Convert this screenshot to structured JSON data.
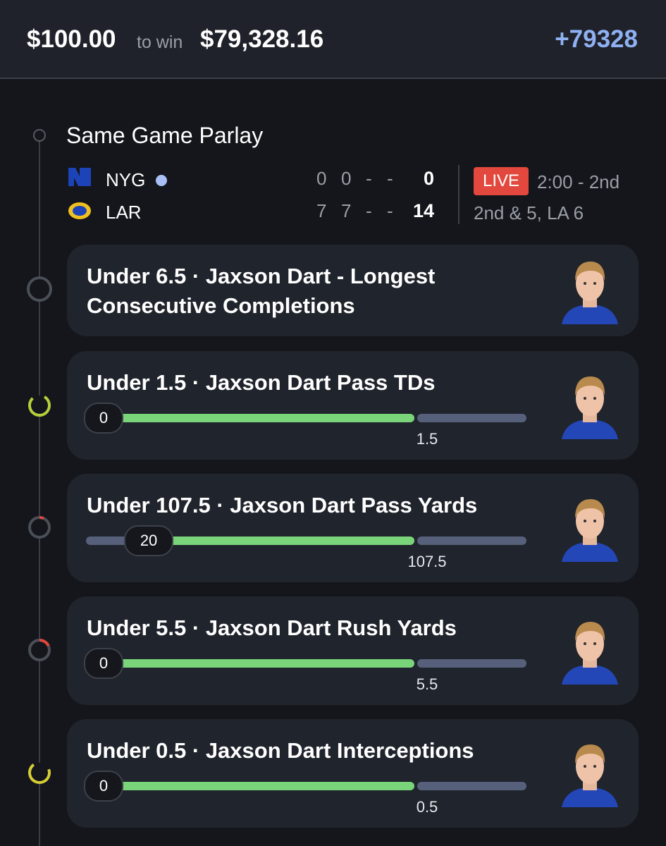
{
  "header": {
    "stake": "$100.00",
    "to_win_label": "to win",
    "payout": "$79,328.16",
    "odds": "+79328"
  },
  "game": {
    "title": "Same Game Parlay",
    "teams": [
      {
        "abbr": "NYG",
        "periods": [
          "0",
          "0",
          "-",
          "-"
        ],
        "total": "0"
      },
      {
        "abbr": "LAR",
        "periods": [
          "7",
          "7",
          "-",
          "-"
        ],
        "total": "14"
      }
    ],
    "status": "LIVE",
    "clock": "2:00 - 2nd",
    "situation": "2nd & 5, LA 6"
  },
  "legs": [
    {
      "title": "Under 6.5 · Jaxson Dart - Longest Consecutive Completions"
    },
    {
      "title": "Under 1.5 · Jaxson Dart Pass TDs",
      "current": 0,
      "line": 1.5
    },
    {
      "title": "Under 107.5 · Jaxson Dart Pass Yards",
      "current": 20,
      "line": 107.5
    },
    {
      "title": "Under 5.5 · Jaxson Dart Rush Yards",
      "current": 0,
      "line": 5.5
    },
    {
      "title": "Under 0.5 · Jaxson Dart Interceptions",
      "current": 0,
      "line": 0.5
    }
  ]
}
